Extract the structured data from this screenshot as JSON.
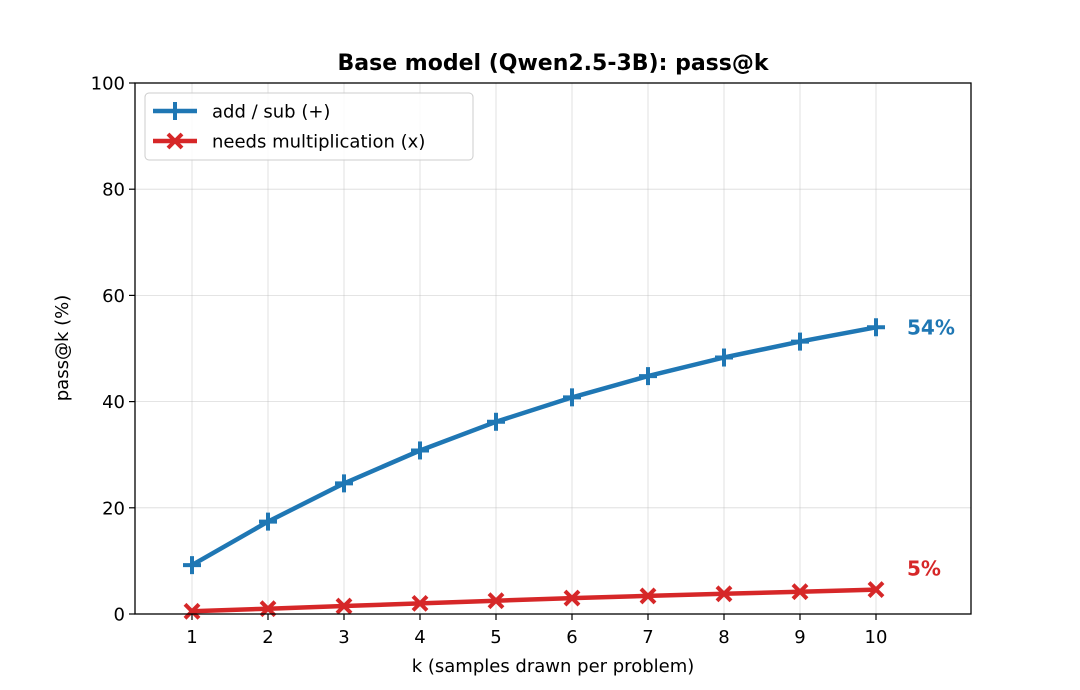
{
  "chart_data": {
    "type": "line",
    "title": "Base model (Qwen2.5-3B): pass@k",
    "xlabel": "k  (samples drawn per problem)",
    "ylabel": "pass@k  (%)",
    "x": [
      1,
      2,
      3,
      4,
      5,
      6,
      7,
      8,
      9,
      10
    ],
    "xlim": [
      0.25,
      11.25
    ],
    "ylim": [
      0,
      100
    ],
    "yticks": [
      0,
      20,
      40,
      60,
      80,
      100
    ],
    "grid": true,
    "legend_position": "top-left",
    "series": [
      {
        "name": "add / sub  (+)",
        "marker": "plus",
        "color": "#1f77b4",
        "values": [
          9.2,
          17.4,
          24.6,
          30.8,
          36.2,
          40.8,
          44.8,
          48.3,
          51.3,
          54.0
        ],
        "end_label": "54%"
      },
      {
        "name": "needs multiplication  (x)",
        "marker": "x",
        "color": "#d62728",
        "values": [
          0.5,
          1.0,
          1.5,
          2.0,
          2.5,
          3.0,
          3.4,
          3.8,
          4.2,
          4.6
        ],
        "end_label": "5%"
      }
    ]
  }
}
